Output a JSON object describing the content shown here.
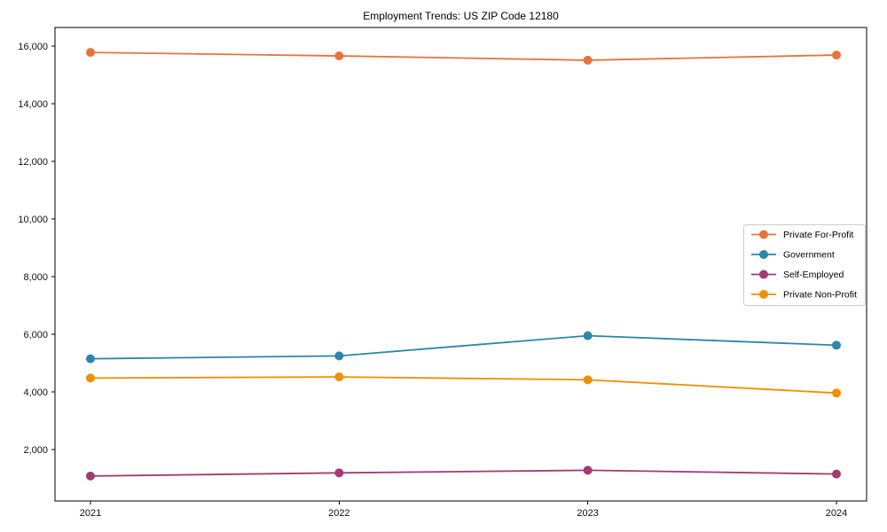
{
  "chart_data": {
    "type": "line",
    "title": "Employment Trends: US ZIP Code 12180",
    "categories": [
      "2021",
      "2022",
      "2023",
      "2024"
    ],
    "series": [
      {
        "name": "Private For-Profit",
        "color": "#E8743B",
        "values": [
          15780,
          15660,
          15510,
          15690
        ]
      },
      {
        "name": "Government",
        "color": "#2E86AB",
        "values": [
          5150,
          5250,
          5950,
          5620
        ]
      },
      {
        "name": "Self-Employed",
        "color": "#A23B72",
        "values": [
          1080,
          1190,
          1280,
          1150
        ]
      },
      {
        "name": "Private Non-Profit",
        "color": "#F18F01",
        "values": [
          4480,
          4520,
          4420,
          3960
        ]
      }
    ],
    "xlabel": "",
    "ylabel": "",
    "ylim": [
      215,
      16646
    ],
    "y_ticks": [
      2000,
      4000,
      6000,
      8000,
      10000,
      12000,
      14000,
      16000
    ],
    "grid": false,
    "legend_position": "middle-right",
    "axis_color": "#000000",
    "background": "#ffffff"
  }
}
